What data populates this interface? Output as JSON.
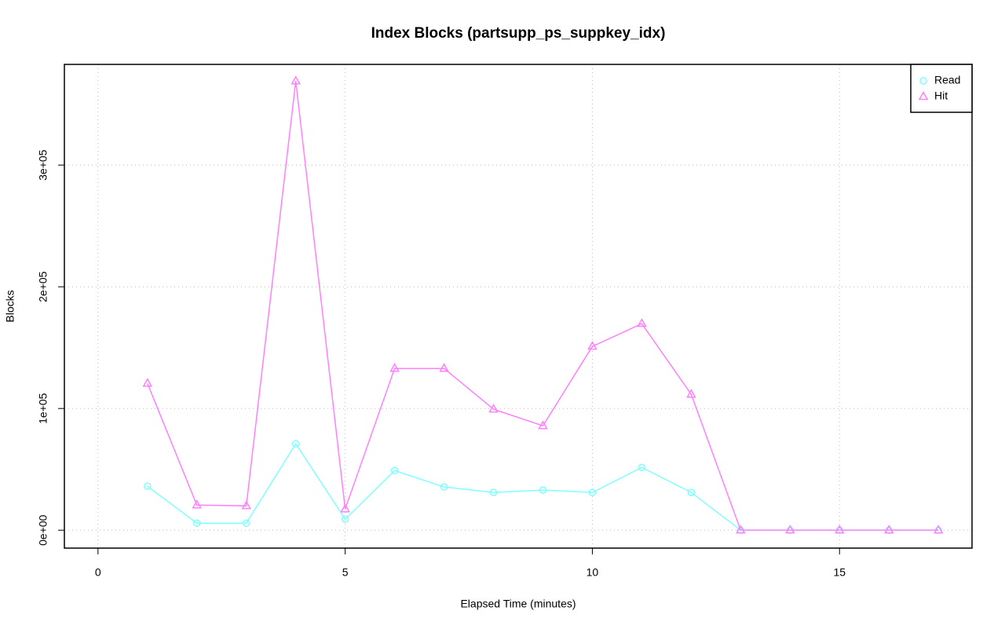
{
  "chart_data": {
    "type": "line",
    "title": "Index Blocks (partsupp_ps_suppkey_idx)",
    "xlabel": "Elapsed Time (minutes)",
    "ylabel": "Blocks",
    "x": [
      1,
      2,
      3,
      4,
      5,
      6,
      7,
      8,
      9,
      10,
      11,
      12,
      13,
      14,
      15,
      16,
      17
    ],
    "series": [
      {
        "name": "Read",
        "color": "#80ffff",
        "marker": "circle",
        "values": [
          36100,
          5800,
          5800,
          71000,
          9000,
          49000,
          35500,
          31000,
          33000,
          31000,
          51600,
          31000,
          0,
          0,
          0,
          0,
          0
        ]
      },
      {
        "name": "Hit",
        "color": "#ff80ff",
        "marker": "triangle",
        "values": [
          120600,
          20600,
          20000,
          369000,
          17400,
          132900,
          132900,
          99400,
          85800,
          151000,
          169700,
          111600,
          0,
          0,
          0,
          0,
          0
        ]
      }
    ],
    "xlim": [
      -0.68,
      17.68
    ],
    "ylim": [
      -14720,
      382720
    ],
    "xticks": [
      0,
      5,
      10,
      15
    ],
    "yticks": [
      {
        "value": 0,
        "label": "0e+00"
      },
      {
        "value": 100000,
        "label": "1e+05"
      },
      {
        "value": 200000,
        "label": "2e+05"
      },
      {
        "value": 300000,
        "label": "3e+05"
      }
    ],
    "grid": true,
    "legend": "top-right"
  }
}
